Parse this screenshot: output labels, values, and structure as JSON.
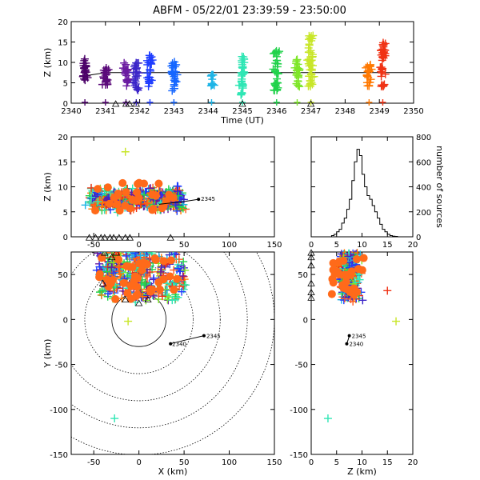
{
  "title": "ABFM - 05/22/01 23:39:59 - 23:50:00",
  "chart_data": [
    {
      "panel": "time-height",
      "type": "scatter",
      "xlabel": "Time (UT)",
      "ylabel": "Z (km)",
      "xlim": [
        2340,
        2350
      ],
      "ylim": [
        0,
        20
      ],
      "x_ticks": [
        "2340",
        "2341",
        "2342",
        "2343",
        "2344",
        "2345",
        "2346",
        "2347",
        "2348",
        "2349",
        "2350"
      ],
      "y_ticks": [
        "0",
        "5",
        "10",
        "15",
        "20"
      ],
      "reference_line_z": 7.5,
      "station_markers_time": [
        2341.3,
        2341.6,
        2341.7,
        2341.9,
        2345.0,
        2347.0
      ],
      "source_clusters": [
        {
          "t": 2340.4,
          "z": [
            5,
            11
          ],
          "color": "#4b0068"
        },
        {
          "t": 2341.0,
          "z": [
            4,
            10
          ],
          "color": "#5b0a7a"
        },
        {
          "t": 2341.6,
          "z": [
            4,
            10
          ],
          "color": "#6a1aa0"
        },
        {
          "t": 2341.9,
          "z": [
            3,
            10
          ],
          "color": "#3b25c8"
        },
        {
          "t": 2342.3,
          "z": [
            4,
            12
          ],
          "color": "#1e3cff"
        },
        {
          "t": 2343.0,
          "z": [
            3,
            11
          ],
          "color": "#1566ff"
        },
        {
          "t": 2344.1,
          "z": [
            4,
            7
          ],
          "color": "#1eb4e6"
        },
        {
          "t": 2345.0,
          "z": [
            2,
            12
          ],
          "color": "#2ee6b4"
        },
        {
          "t": 2346.0,
          "z": [
            3,
            13
          ],
          "color": "#21d24b"
        },
        {
          "t": 2346.6,
          "z": [
            4,
            11
          ],
          "color": "#7ee628"
        },
        {
          "t": 2347.0,
          "z": [
            3,
            17
          ],
          "color": "#c8e628"
        },
        {
          "t": 2348.7,
          "z": [
            4,
            10
          ],
          "color": "#ff7800"
        },
        {
          "t": 2349.1,
          "z": [
            3,
            15
          ],
          "color": "#f03214"
        }
      ]
    },
    {
      "panel": "x-z",
      "type": "scatter",
      "xlabel": "",
      "ylabel": "Z (km)",
      "xlim": [
        -75,
        150
      ],
      "ylim": [
        0,
        20
      ],
      "x_ticks": [
        "-50",
        "0",
        "50",
        "100",
        "150"
      ],
      "y_ticks": [
        "0",
        "5",
        "10",
        "15",
        "20"
      ],
      "track_label": "2345"
    },
    {
      "panel": "height-histogram",
      "type": "line",
      "xlabel": "",
      "ylabel": "number of sources",
      "xlim": [
        0,
        20
      ],
      "ylim": [
        0,
        800
      ],
      "x_ticks": [
        "0",
        "5",
        "10",
        "15",
        "20"
      ],
      "y_ticks": [
        "0",
        "200",
        "400",
        "600",
        "800"
      ],
      "bins_start": 0,
      "bin_width": 0.5,
      "counts": [
        0,
        0,
        0,
        0,
        0,
        0,
        0,
        0,
        10,
        20,
        40,
        60,
        110,
        150,
        220,
        300,
        450,
        600,
        700,
        650,
        500,
        400,
        330,
        300,
        250,
        200,
        150,
        100,
        60,
        40,
        20,
        10,
        5,
        3,
        0,
        0,
        0,
        0,
        0,
        0
      ]
    },
    {
      "panel": "plan-view",
      "type": "scatter",
      "xlabel": "X (km)",
      "ylabel": "Y (km)",
      "xlim": [
        -75,
        150
      ],
      "ylim": [
        -150,
        75
      ],
      "x_ticks": [
        "-50",
        "0",
        "50",
        "100",
        "150"
      ],
      "y_ticks": [
        "-150",
        "-100",
        "-50",
        "0",
        "50"
      ],
      "range_rings_km": [
        30,
        60,
        90,
        120,
        150
      ],
      "track_start_label": "2340",
      "track_end_label": "2345"
    },
    {
      "panel": "y-z",
      "type": "scatter",
      "xlabel": "Z (km)",
      "ylabel": "",
      "xlim": [
        0,
        20
      ],
      "ylim": [
        -150,
        75
      ],
      "x_ticks": [
        "0",
        "5",
        "10",
        "15",
        "20"
      ],
      "y_ticks": [
        "-150",
        "-100",
        "-50",
        "0",
        "50"
      ],
      "track_start_label": "2340",
      "track_end_label": "2345"
    }
  ]
}
